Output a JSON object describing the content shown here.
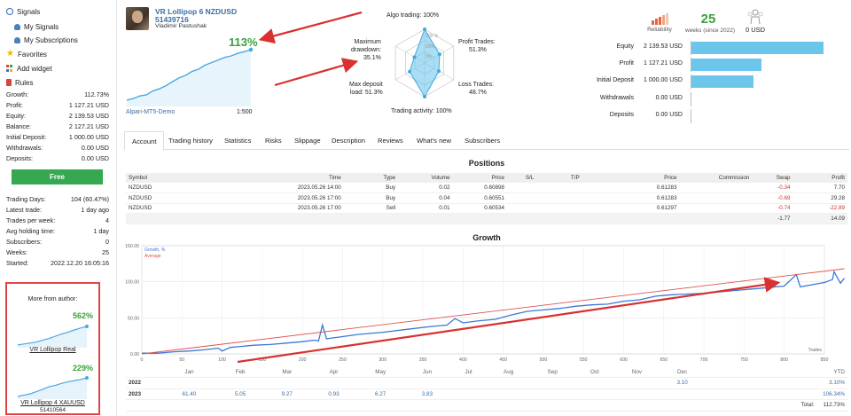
{
  "sidebar": {
    "nav": [
      {
        "label": "Signals",
        "icon": "signals-icon"
      },
      {
        "label": "My Signals",
        "icon": "user-icon"
      },
      {
        "label": "My Subscriptions",
        "icon": "user-icon"
      },
      {
        "label": "Favorites",
        "icon": "star-icon"
      },
      {
        "label": "Add widget",
        "icon": "widget-icon"
      },
      {
        "label": "Rules",
        "icon": "rules-icon"
      }
    ],
    "stats": [
      {
        "label": "Growth:",
        "value": "112.73%"
      },
      {
        "label": "Profit:",
        "value": "1 127.21 USD"
      },
      {
        "label": "Equity:",
        "value": "2 139.53 USD"
      },
      {
        "label": "Balance:",
        "value": "2 127.21 USD"
      },
      {
        "label": "Initial Deposit:",
        "value": "1 000.00 USD"
      },
      {
        "label": "Withdrawals:",
        "value": "0.00 USD"
      },
      {
        "label": "Deposits:",
        "value": "0.00 USD"
      }
    ],
    "free_label": "Free",
    "stats2": [
      {
        "label": "Trading Days:",
        "value": "104 (60.47%)"
      },
      {
        "label": "Latest trade:",
        "value": "1 day ago"
      },
      {
        "label": "Trades per week:",
        "value": "4"
      },
      {
        "label": "Avg holding time:",
        "value": "1 day"
      },
      {
        "label": "Subscribers:",
        "value": "0"
      },
      {
        "label": "Weeks:",
        "value": "25"
      },
      {
        "label": "Started:",
        "value": "2022.12.20 16:05:16"
      }
    ],
    "more": {
      "title": "More from author:",
      "cards": [
        {
          "pct": "562%",
          "name": "VR Lollipop Real",
          "sub": ""
        },
        {
          "pct": "229%",
          "name": "VR Lollipop 4 XAUUSD",
          "sub": "51410564"
        }
      ]
    }
  },
  "header": {
    "name": "VR Lollipop 6 NZDUSD",
    "number": "51439716",
    "author": "Vladimir Pastushak",
    "growth": "113%",
    "broker": "Alpari-MT5-Demo",
    "leverage": "1:500"
  },
  "radar": {
    "algo": "Algo trading: 100%",
    "profit_trades_label": "Profit Trades:",
    "profit_trades_value": "51.3%",
    "loss_trades_label": "Loss Trades:",
    "loss_trades_value": "48.7%",
    "activity": "Trading activity: 100%",
    "deposit_label": "Max deposit",
    "deposit_label2": "load: 51.3%",
    "drawdown_label": "Maximum",
    "drawdown_label2": "drawdown:",
    "drawdown_value": "35.1%",
    "ring_labels": [
      "100 %",
      "50%",
      "0%"
    ],
    "values": [
      1.0,
      0.513,
      0.487,
      1.0,
      0.513,
      0.351
    ]
  },
  "summary": {
    "reliability_label": "Reliability",
    "weeks_value": "25",
    "weeks_caption": "weeks (since 2022)",
    "subs_value": "0 USD",
    "bars": [
      {
        "label": "Equity",
        "value": "2 139.53 USD",
        "amount": 2139.53
      },
      {
        "label": "Profit",
        "value": "1 127.21 USD",
        "amount": 1127.21
      },
      {
        "label": "Initial Deposit",
        "value": "1 000.00 USD",
        "amount": 1000.0
      },
      {
        "label": "Withdrawals",
        "value": "0.00 USD",
        "amount": 0
      },
      {
        "label": "Deposits",
        "value": "0.00 USD",
        "amount": 0
      }
    ],
    "bar_max": 2139.53,
    "bar_color": "#6cc6ec"
  },
  "tabs": [
    "Account",
    "Trading history",
    "Statistics",
    "Risks",
    "Slippage",
    "Description",
    "Reviews",
    "What's new",
    "Subscribers"
  ],
  "positions": {
    "title": "Positions",
    "columns": [
      "Symbol",
      "Time",
      "Type",
      "Volume",
      "Price",
      "S/L",
      "T/P",
      "Price",
      "Commission",
      "Swap",
      "Profit"
    ],
    "rows": [
      [
        "NZDUSD",
        "2023.05.26 14:00",
        "Buy",
        "0.02",
        "0.60898",
        "",
        "",
        "0.61283",
        "",
        "-0.34",
        "7.70"
      ],
      [
        "NZDUSD",
        "2023.05.26 17:00",
        "Buy",
        "0.04",
        "0.60551",
        "",
        "",
        "0.61283",
        "",
        "-0.69",
        "29.28"
      ],
      [
        "NZDUSD",
        "2023.05.26 17:00",
        "Sell",
        "0.01",
        "0.60534",
        "",
        "",
        "0.61297",
        "",
        "-0.74",
        "-22.89"
      ]
    ],
    "totals": {
      "swap": "-1.77",
      "profit": "14.09"
    }
  },
  "growth": {
    "title": "Growth",
    "legend_growth": "Growth, %",
    "legend_average": "Average",
    "trades_label": "Trades",
    "months": [
      "Jan",
      "Feb",
      "Mar",
      "Apr",
      "May",
      "Jun",
      "Jul",
      "Aug",
      "Sep",
      "Oct",
      "Nov",
      "Dec",
      "YTD"
    ],
    "years": [
      {
        "year": "2022",
        "values": [
          "",
          "",
          "",
          "",
          "",
          "",
          "",
          "",
          "",
          "",
          "",
          "3.10"
        ],
        "ytd": "3.10%"
      },
      {
        "year": "2023",
        "values": [
          "61.40",
          "5.05",
          "9.27",
          "0.93",
          "6.27",
          "3.83",
          "",
          "",
          "",
          "",
          "",
          ""
        ],
        "ytd": "106.34%"
      }
    ],
    "total_label": "Total:",
    "total_value": "112.73%"
  },
  "chart_data": {
    "type": "line",
    "x_ticks": [
      0,
      50,
      100,
      150,
      200,
      250,
      300,
      350,
      400,
      450,
      500,
      550,
      600,
      650,
      700,
      750,
      800,
      850
    ],
    "y_ticks": [
      0,
      50,
      100,
      150
    ],
    "xlim": [
      0,
      850
    ],
    "ylim": [
      0,
      150
    ],
    "series": [
      {
        "name": "Growth, %",
        "color": "#3a78d8",
        "points": [
          [
            0,
            1
          ],
          [
            20,
            1
          ],
          [
            40,
            3
          ],
          [
            60,
            4
          ],
          [
            80,
            6
          ],
          [
            95,
            8
          ],
          [
            100,
            4
          ],
          [
            110,
            9
          ],
          [
            120,
            10
          ],
          [
            140,
            12
          ],
          [
            160,
            13
          ],
          [
            180,
            15
          ],
          [
            200,
            17
          ],
          [
            215,
            19
          ],
          [
            220,
            18
          ],
          [
            225,
            40
          ],
          [
            230,
            21
          ],
          [
            250,
            24
          ],
          [
            270,
            27
          ],
          [
            300,
            30
          ],
          [
            330,
            34
          ],
          [
            360,
            38
          ],
          [
            380,
            40
          ],
          [
            390,
            49
          ],
          [
            400,
            43
          ],
          [
            420,
            46
          ],
          [
            440,
            48
          ],
          [
            460,
            54
          ],
          [
            480,
            59
          ],
          [
            500,
            61
          ],
          [
            520,
            63
          ],
          [
            540,
            66
          ],
          [
            560,
            68
          ],
          [
            580,
            69
          ],
          [
            600,
            73
          ],
          [
            620,
            75
          ],
          [
            640,
            80
          ],
          [
            660,
            82
          ],
          [
            680,
            83
          ],
          [
            700,
            84
          ],
          [
            720,
            86
          ],
          [
            740,
            88
          ],
          [
            760,
            90
          ],
          [
            780,
            92
          ],
          [
            800,
            94
          ],
          [
            815,
            110
          ],
          [
            820,
            93
          ],
          [
            840,
            97
          ],
          [
            850,
            99
          ],
          [
            860,
            103
          ],
          [
            862,
            114
          ],
          [
            866,
            106
          ],
          [
            870,
            98
          ],
          [
            875,
            105
          ]
        ]
      },
      {
        "name": "Average",
        "color": "#e05050",
        "points": [
          [
            0,
            0
          ],
          [
            875,
            118
          ]
        ]
      }
    ]
  },
  "mini_charts": [
    {
      "points": [
        0.05,
        0.1,
        0.15,
        0.2,
        0.3,
        0.38,
        0.5,
        0.62,
        0.7,
        0.82,
        0.92,
        1.0
      ]
    },
    {
      "points": [
        0.05,
        0.12,
        0.18,
        0.3,
        0.42,
        0.55,
        0.62,
        0.72,
        0.8,
        0.86,
        0.92,
        1.0
      ]
    }
  ],
  "header_curve": [
    0.02,
    0.05,
    0.1,
    0.12,
    0.2,
    0.24,
    0.3,
    0.38,
    0.45,
    0.5,
    0.58,
    0.62,
    0.7,
    0.75,
    0.8,
    0.85,
    0.88,
    0.93,
    0.96,
    1.0
  ]
}
